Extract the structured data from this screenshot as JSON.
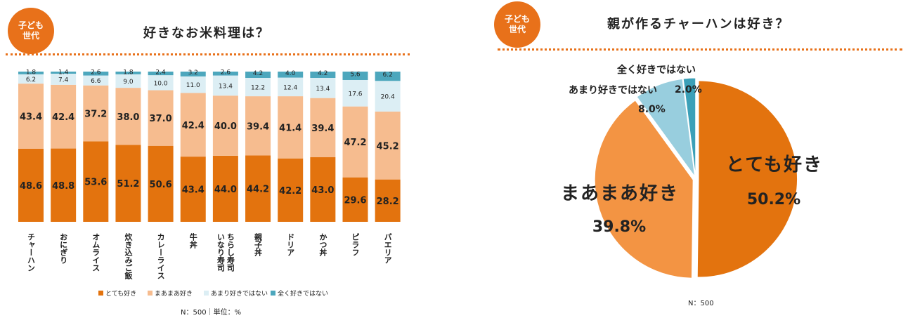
{
  "colors": {
    "accent": "#E8711A",
    "c1": "#E3730E",
    "c2": "#F6BC8F",
    "c3": "#DCEEF4",
    "c4": "#4DA7BD",
    "pie1": "#E3730E",
    "pie2": "#F39443",
    "pie3": "#98CEDE",
    "pie4": "#3BA0B8"
  },
  "left": {
    "badge": [
      "子ども",
      "世代"
    ],
    "title": "好きなお米料理は？",
    "note": "N：500｜単位：%",
    "chart_data": {
      "type": "bar",
      "stacked": true,
      "title": "好きなお米料理は？",
      "categories": [
        "チャーハン",
        "おにぎり",
        "オムライス",
        "炊き込みご飯",
        "カレーライス",
        "牛丼",
        "ちらし寿司 いなり寿司",
        "親子丼",
        "ドリア",
        "かつ丼",
        "ピラフ",
        "パエリア"
      ],
      "category_lines": [
        [
          "チャーハン"
        ],
        [
          "おにぎり"
        ],
        [
          "オムライス"
        ],
        [
          "炊き込みご飯"
        ],
        [
          "カレーライス"
        ],
        [
          "牛丼"
        ],
        [
          "ちらし寿司",
          "いなり寿司"
        ],
        [
          "親子丼"
        ],
        [
          "ドリア"
        ],
        [
          "かつ丼"
        ],
        [
          "ピラフ"
        ],
        [
          "パエリア"
        ]
      ],
      "series": [
        {
          "name": "とても好き",
          "values": [
            48.6,
            48.8,
            53.6,
            51.2,
            50.6,
            43.4,
            44.0,
            44.2,
            42.2,
            43.0,
            29.6,
            28.2
          ],
          "labels": [
            "48.6",
            "48.8",
            "53.6",
            "51.2",
            "50.6",
            "43.4",
            "44.0",
            "44.2",
            "42.2",
            "43.0",
            "29.6",
            "28.2"
          ]
        },
        {
          "name": "まあまあ好き",
          "values": [
            43.4,
            42.4,
            37.2,
            38.0,
            37.0,
            42.4,
            40.0,
            39.4,
            41.4,
            39.4,
            47.2,
            45.2
          ],
          "labels": [
            "43.4",
            "42.4",
            "37.2",
            "38.0",
            "37.0",
            "42.4",
            "40.0",
            "39.4",
            "41.4",
            "39.4",
            "47.2",
            "45.2"
          ]
        },
        {
          "name": "あまり好きではない",
          "values": [
            6.2,
            7.4,
            6.6,
            9.0,
            10.0,
            11.0,
            13.4,
            12.2,
            12.4,
            13.4,
            17.6,
            20.4
          ],
          "labels": [
            "6.2",
            "7.4",
            "6.6",
            "9.0",
            "10.0",
            "11.0",
            "13.4",
            "12.2",
            "12.4",
            "13.4",
            "17.6",
            "20.4"
          ]
        },
        {
          "name": "全く好きではない",
          "values": [
            1.8,
            1.4,
            2.6,
            1.8,
            2.4,
            3.2,
            2.6,
            4.2,
            4.0,
            4.2,
            5.6,
            6.2
          ],
          "labels": [
            "1.8",
            "1.4",
            "2.6",
            "1.8",
            "2.4",
            "3.2",
            "2.6",
            "4.2",
            "4.0",
            "4.2",
            "5.6",
            "6.2"
          ]
        }
      ],
      "ylim": [
        0,
        100
      ],
      "legend": "bottom"
    }
  },
  "right": {
    "badge": [
      "子ども",
      "世代"
    ],
    "title": "親が作るチャーハンは好き？",
    "note": "N：500",
    "chart_data": {
      "type": "pie",
      "title": "親が作るチャーハンは好き？",
      "slices": [
        {
          "name": "とても好き",
          "value": 50.2,
          "label": "50.2%"
        },
        {
          "name": "まあまあ好き",
          "value": 39.8,
          "label": "39.8%"
        },
        {
          "name": "あまり好きではない",
          "value": 8.0,
          "label": "8.0%"
        },
        {
          "name": "全く好きではない",
          "value": 2.0,
          "label": "2.0%"
        }
      ]
    }
  }
}
